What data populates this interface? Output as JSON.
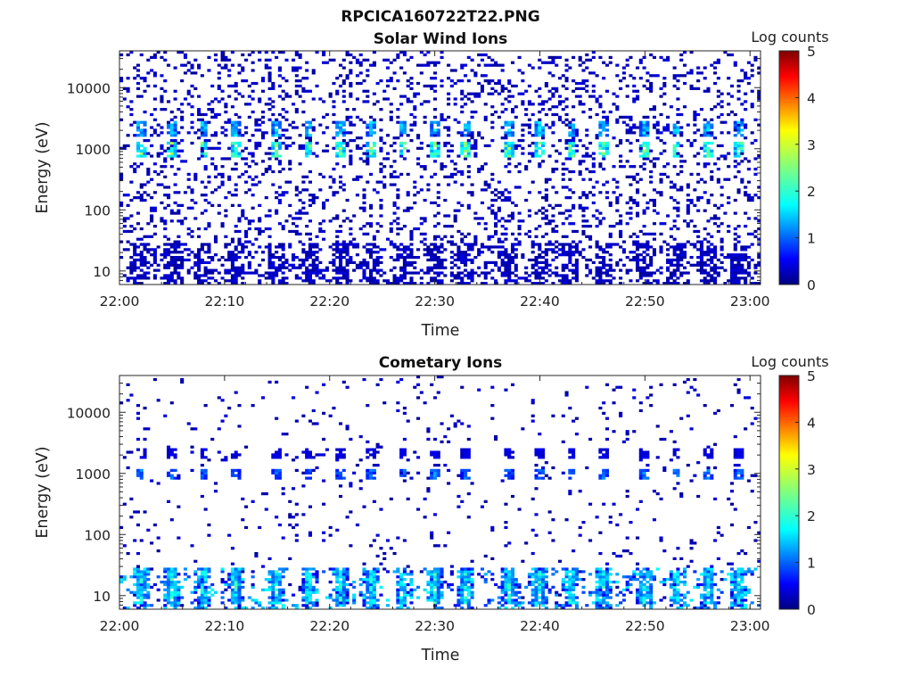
{
  "figure_title": "RPCICA160722T22.PNG",
  "chart_data": [
    {
      "type": "heatmap",
      "title": "Solar Wind Ions",
      "xlabel": "Time",
      "ylabel": "Energy (eV)",
      "xlim": [
        "22:00",
        "23:01"
      ],
      "ylim": [
        6,
        40000
      ],
      "yscale": "log",
      "x_ticks": [
        "22:00",
        "22:10",
        "22:20",
        "22:30",
        "22:40",
        "22:50",
        "23:00"
      ],
      "y_ticks": [
        {
          "value": 10,
          "label": "10"
        },
        {
          "value": 100,
          "label": "100"
        },
        {
          "value": 1000,
          "label": "1000"
        },
        {
          "value": 10000,
          "label": "10000"
        }
      ],
      "colorbar": {
        "label": "Log counts",
        "range": [
          0,
          5
        ],
        "ticks": [
          "0",
          "1",
          "2",
          "3",
          "4",
          "5"
        ],
        "colormap": "jet"
      },
      "peak_bands": [
        {
          "energy_ev": [
            700,
            1300
          ],
          "level": 2.6
        },
        {
          "energy_ev": [
            1600,
            2800
          ],
          "level": 1.8
        }
      ],
      "sweep_times": [
        "22:02",
        "22:05",
        "22:08",
        "22:11",
        "22:15",
        "22:18",
        "22:21",
        "22:24",
        "22:27",
        "22:30",
        "22:33",
        "22:37",
        "22:40",
        "22:43",
        "22:46",
        "22:50",
        "22:53",
        "22:56",
        "22:59"
      ],
      "low_energy_band": {
        "energy_ev": [
          6,
          30
        ],
        "level": 0.4
      },
      "background_level": 0.3
    },
    {
      "type": "heatmap",
      "title": "Cometary Ions",
      "xlabel": "Time",
      "ylabel": "Energy (eV)",
      "xlim": [
        "22:00",
        "23:01"
      ],
      "ylim": [
        6,
        40000
      ],
      "yscale": "log",
      "x_ticks": [
        "22:00",
        "22:10",
        "22:20",
        "22:30",
        "22:40",
        "22:50",
        "23:00"
      ],
      "y_ticks": [
        {
          "value": 10,
          "label": "10"
        },
        {
          "value": 100,
          "label": "100"
        },
        {
          "value": 1000,
          "label": "1000"
        },
        {
          "value": 10000,
          "label": "10000"
        }
      ],
      "colorbar": {
        "label": "Log counts",
        "range": [
          0,
          5
        ],
        "ticks": [
          "0",
          "1",
          "2",
          "3",
          "4",
          "5"
        ],
        "colormap": "jet"
      },
      "peak_bands": [
        {
          "energy_ev": [
            7,
            25
          ],
          "level": 2.1
        },
        {
          "energy_ev": [
            800,
            1200
          ],
          "level": 1.3
        },
        {
          "energy_ev": [
            1800,
            2600
          ],
          "level": 0.6
        }
      ],
      "sweep_times": [
        "22:02",
        "22:05",
        "22:08",
        "22:11",
        "22:15",
        "22:18",
        "22:21",
        "22:24",
        "22:27",
        "22:30",
        "22:33",
        "22:37",
        "22:40",
        "22:43",
        "22:46",
        "22:50",
        "22:53",
        "22:56",
        "22:59"
      ],
      "low_energy_band": {
        "energy_ev": [
          6,
          30
        ],
        "level": 1.6
      },
      "background_level": 0.1
    }
  ]
}
